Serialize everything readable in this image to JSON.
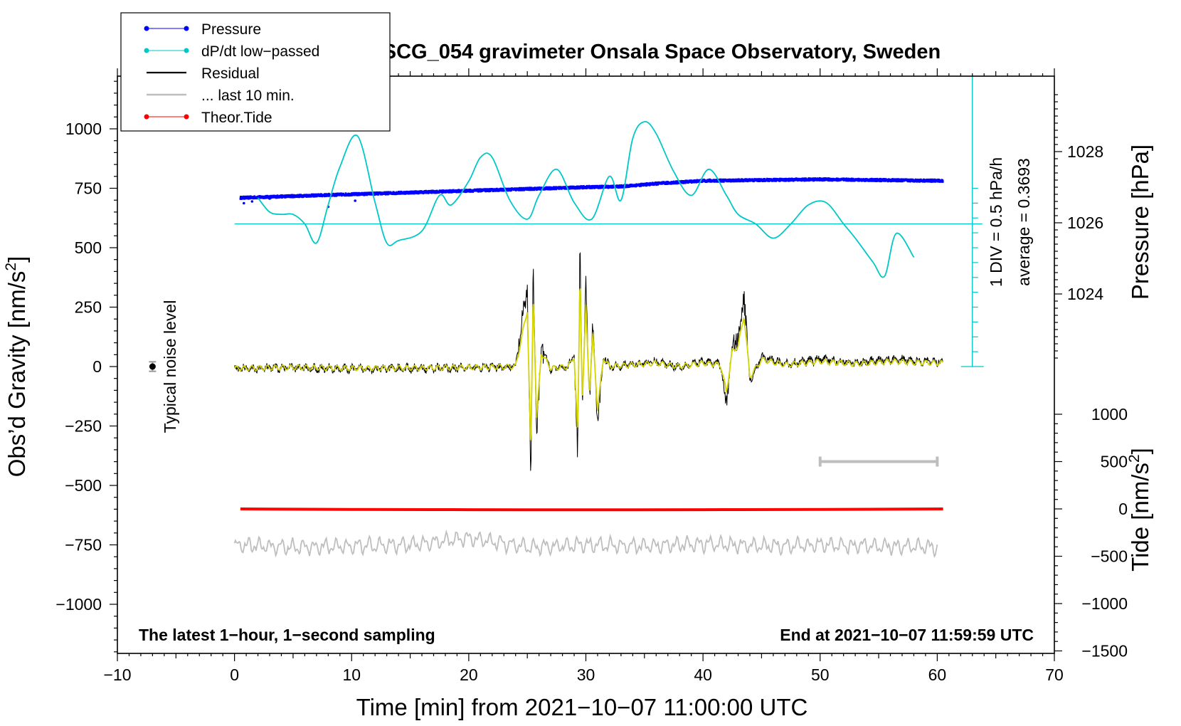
{
  "chart_data": {
    "type": "line",
    "title": "SCG_054 gravimeter Onsala Space Observatory, Sweden",
    "xlabel": "Time [min] from 2021−10−07 11:00:00 UTC",
    "ylabel_left": "Obs’d Gravity [nm/s²]",
    "ylabel_left_main": "Obs’d Gravity [nm/s",
    "ylabel_right_pressure": "Pressure [hPa]",
    "ylabel_right_tide_main": "Tide [nm/s",
    "superscript": "2",
    "xlim": [
      -10,
      70
    ],
    "ylim_left": [
      -1200,
      1200
    ],
    "ylim_pressure_visible": [
      1022,
      1030
    ],
    "ylim_tide": [
      -1500,
      1500
    ],
    "x_ticks": [
      -10,
      0,
      10,
      20,
      30,
      40,
      50,
      60,
      70
    ],
    "x_tick_labels": [
      "−10",
      "0",
      "10",
      "20",
      "30",
      "40",
      "50",
      "60",
      "70"
    ],
    "y_left_ticks": [
      1000,
      750,
      500,
      250,
      0,
      -250,
      -500,
      -750,
      -1000
    ],
    "y_left_tick_labels": [
      "1000",
      "750",
      "500",
      "250",
      "0",
      "−250",
      "−500",
      "−750",
      "−1000"
    ],
    "pressure_ticks": [
      1028,
      1026,
      1024
    ],
    "pressure_tick_labels": [
      "1028",
      "1026",
      "1024"
    ],
    "tide_ticks": [
      1000,
      500,
      0,
      -500,
      -1000,
      -1500
    ],
    "tide_tick_labels": [
      "1000",
      "500",
      "0",
      "−500",
      "−1000",
      "−1500"
    ],
    "legend": [
      {
        "label": "Pressure",
        "color": "#0000ff",
        "marker": true
      },
      {
        "label": "dP/dt low−passed",
        "color": "#00c8c8",
        "marker": true
      },
      {
        "label": "Residual",
        "color": "#000000",
        "marker": false
      },
      {
        "label": "... last 10 min.",
        "color": "#bebebe",
        "marker": false
      },
      {
        "label": "Theor.Tide",
        "color": "#ff0000",
        "marker": true
      }
    ],
    "annotations": {
      "bottom_left": "The latest 1−hour, 1−second sampling",
      "bottom_right": "End at 2021−10−07 11:59:59 UTC",
      "noise_label": "Typical noise level",
      "scale_div": "1 DIV = 0.5 hPa/h",
      "scale_avg": "average = 0.3693"
    },
    "noise_marker": {
      "x": -7,
      "y": 0,
      "err": 20
    },
    "scale_bar_tide": {
      "x0": 50,
      "x1": 60,
      "y": 500
    },
    "dpdt_scale": {
      "x": 63,
      "zero_y": 600,
      "div_y": 62.5,
      "divisions": 12
    },
    "series": [
      {
        "name": "Pressure",
        "color": "#0000ff",
        "units": "hPa",
        "x": [
          0.5,
          5,
          10,
          15,
          20,
          25,
          30,
          33,
          36,
          40,
          45,
          50,
          55,
          60.5
        ],
        "y": [
          1026.7,
          1026.75,
          1026.8,
          1026.85,
          1026.9,
          1026.95,
          1027.0,
          1027.02,
          1027.1,
          1027.18,
          1027.2,
          1027.22,
          1027.2,
          1027.18
        ]
      },
      {
        "name": "dP/dt low−passed",
        "color": "#00c8c8",
        "units": "nm/s² (plot scale)",
        "x": [
          2,
          3,
          4,
          5,
          6,
          7,
          8,
          9,
          10.5,
          12,
          13,
          14,
          16,
          17.5,
          18.5,
          20,
          21,
          22,
          23.5,
          25,
          26,
          27.5,
          29,
          30.5,
          32,
          33,
          34,
          35,
          36,
          37.5,
          39,
          40.5,
          42,
          43,
          44.5,
          46,
          47.5,
          49,
          50.5,
          52,
          53,
          54.5,
          55.5,
          56.5,
          58
        ],
        "y": [
          710,
          650,
          640,
          640,
          600,
          520,
          680,
          840,
          970,
          690,
          520,
          530,
          570,
          720,
          680,
          780,
          880,
          880,
          700,
          620,
          720,
          830,
          690,
          620,
          800,
          700,
          960,
          1030,
          980,
          820,
          720,
          830,
          720,
          640,
          600,
          540,
          600,
          680,
          690,
          600,
          540,
          440,
          380,
          560,
          460
        ]
      },
      {
        "name": "Residual",
        "color": "#000000",
        "units": "nm/s²",
        "x": [
          0,
          5,
          10,
          15,
          20,
          24,
          25,
          25.3,
          25.5,
          25.8,
          26.2,
          27,
          28.5,
          29,
          29.3,
          29.5,
          29.7,
          30,
          30.3,
          30.6,
          31,
          31.5,
          32,
          34,
          36,
          38,
          40,
          41.5,
          42,
          42.5,
          43,
          43.5,
          44,
          45,
          47,
          50,
          53,
          56,
          60
        ],
        "y": [
          -10,
          -5,
          -10,
          -8,
          -5,
          0,
          330,
          -500,
          420,
          -300,
          80,
          -10,
          0,
          60,
          -400,
          540,
          -200,
          350,
          -150,
          180,
          -250,
          50,
          0,
          10,
          20,
          0,
          20,
          10,
          -150,
          90,
          120,
          300,
          -60,
          40,
          10,
          30,
          15,
          30,
          20
        ]
      },
      {
        "name": "... last 10 min.",
        "color": "#bebebe",
        "units": "nm/s²",
        "x": [
          0,
          5,
          10,
          15,
          20,
          25,
          30,
          35,
          40,
          45,
          50,
          55,
          60
        ],
        "y": [
          -750,
          -760,
          -755,
          -750,
          -720,
          -760,
          -750,
          -755,
          -745,
          -755,
          -750,
          -755,
          -760
        ]
      },
      {
        "name": "Theor.Tide",
        "color": "#ff0000",
        "units": "nm/s²",
        "x": [
          0.5,
          10,
          20,
          30,
          40,
          50,
          60.5
        ],
        "y": [
          0,
          -5,
          -8,
          -10,
          -8,
          -5,
          0
        ]
      }
    ]
  }
}
